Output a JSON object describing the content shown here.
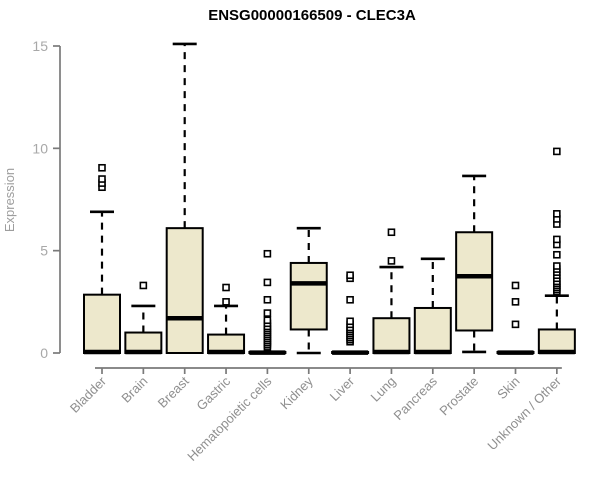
{
  "chart_data": {
    "type": "boxplot",
    "title": "ENSG00000166509 - CLEC3A",
    "ylabel": "Expression",
    "xlabel": "",
    "ylim": [
      0,
      15
    ],
    "yticks": [
      0,
      5,
      10,
      15
    ],
    "grid": false,
    "legend": "none",
    "categories": [
      "Bladder",
      "Brain",
      "Breast",
      "Gastric",
      "Hematopoietic cells",
      "Kidney",
      "Liver",
      "Lung",
      "Pancreas",
      "Prostate",
      "Skin",
      "Unknown / Other"
    ],
    "boxes": [
      {
        "category": "Bladder",
        "whisker_low": 0,
        "q1": 0,
        "median": 0.05,
        "q3": 2.85,
        "whisker_high": 6.9,
        "outliers": [
          8.1,
          8.3,
          8.5,
          9.05
        ]
      },
      {
        "category": "Brain",
        "whisker_low": 0,
        "q1": 0,
        "median": 0.05,
        "q3": 1.0,
        "whisker_high": 2.3,
        "outliers": [
          3.3
        ]
      },
      {
        "category": "Breast",
        "whisker_low": 0,
        "q1": 0,
        "median": 1.7,
        "q3": 6.1,
        "whisker_high": 15.1,
        "outliers": []
      },
      {
        "category": "Gastric",
        "whisker_low": 0,
        "q1": 0,
        "median": 0.05,
        "q3": 0.9,
        "whisker_high": 2.3,
        "outliers": [
          2.5,
          3.2
        ]
      },
      {
        "category": "Hematopoietic cells",
        "whisker_low": 0,
        "q1": 0,
        "median": 0.02,
        "q3": 0.05,
        "whisker_high": 0.05,
        "outliers": [
          0.3,
          0.4,
          0.5,
          0.6,
          0.7,
          0.8,
          0.9,
          1.0,
          1.1,
          1.2,
          1.3,
          1.45,
          1.6,
          1.95,
          2.6,
          3.45,
          4.85
        ]
      },
      {
        "category": "Kidney",
        "whisker_low": 0,
        "q1": 1.15,
        "median": 3.4,
        "q3": 4.4,
        "whisker_high": 6.1,
        "outliers": []
      },
      {
        "category": "Liver",
        "whisker_low": 0,
        "q1": 0,
        "median": 0.02,
        "q3": 0.05,
        "whisker_high": 0.05,
        "outliers": [
          0.55,
          0.65,
          0.75,
          0.85,
          0.95,
          1.05,
          1.15,
          1.25,
          1.4,
          1.55,
          2.6,
          3.65,
          3.8
        ]
      },
      {
        "category": "Lung",
        "whisker_low": 0,
        "q1": 0,
        "median": 0.05,
        "q3": 1.7,
        "whisker_high": 4.2,
        "outliers": [
          4.5,
          5.9
        ]
      },
      {
        "category": "Pancreas",
        "whisker_low": 0,
        "q1": 0,
        "median": 0.05,
        "q3": 2.2,
        "whisker_high": 4.6,
        "outliers": []
      },
      {
        "category": "Prostate",
        "whisker_low": 0.05,
        "q1": 1.1,
        "median": 3.75,
        "q3": 5.9,
        "whisker_high": 8.65,
        "outliers": []
      },
      {
        "category": "Skin",
        "whisker_low": 0,
        "q1": 0,
        "median": 0.02,
        "q3": 0.05,
        "whisker_high": 0.05,
        "outliers": [
          1.4,
          2.5,
          3.3
        ]
      },
      {
        "category": "Unknown / Other",
        "whisker_low": 0,
        "q1": 0,
        "median": 0.05,
        "q3": 1.15,
        "whisker_high": 2.8,
        "outliers": [
          3.0,
          3.1,
          3.2,
          3.3,
          3.4,
          3.5,
          3.65,
          3.8,
          3.95,
          4.1,
          4.25,
          4.8,
          5.3,
          5.55,
          6.3,
          6.55,
          6.8,
          9.85
        ]
      }
    ],
    "colors": {
      "box_fill": "#EDE8CC",
      "box_border": "#000000",
      "median": "#000000",
      "whisker": "#000000",
      "outlier_stroke": "#000000",
      "outlier_fill": "#ffffff",
      "axis": "#7a7a7a",
      "y_tick_label": "#a8a8a8",
      "x_tick_label": "#8f8f8f",
      "title": "#000000",
      "background": "#ffffff"
    }
  }
}
